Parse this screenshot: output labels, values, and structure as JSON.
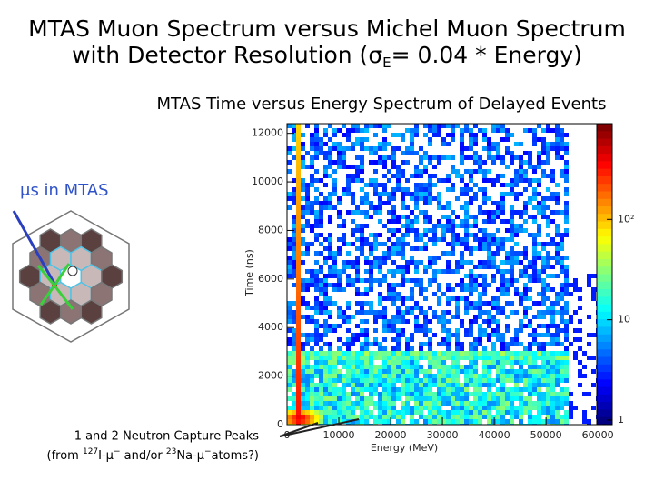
{
  "slide": {
    "title_line1": "MTAS Muon Spectrum versus Michel Muon Spectrum",
    "title_line2": [
      "with Detector Resolution (",
      "σ",
      "E",
      "= 0.04 * Energy)"
    ],
    "inset_label": "μs in MTAS",
    "annotation_line1": "1 and 2 Neutron Capture Peaks",
    "annotation_line2": [
      "(from ",
      "127",
      "I-μ",
      "−",
      " and/or ",
      "23",
      "Na-μ",
      "−",
      "atoms?)"
    ]
  },
  "chart_data": {
    "type": "histogram2d",
    "title": "MTAS Time versus Energy Spectrum of Delayed Events",
    "xlabel": "Energy (MeV)",
    "ylabel": "Time (ns)",
    "xlim": [
      0,
      60500
    ],
    "ylim": [
      0,
      12400
    ],
    "xticks": [
      0,
      10000,
      20000,
      30000,
      40000,
      50000,
      60000
    ],
    "yticks": [
      0,
      2000,
      4000,
      6000,
      8000,
      10000,
      12000
    ],
    "colorbar": {
      "log": true,
      "lim": [
        1,
        900
      ],
      "ticks": [
        1,
        10,
        {
          "value": 100,
          "label": "10²"
        }
      ]
    }
  }
}
